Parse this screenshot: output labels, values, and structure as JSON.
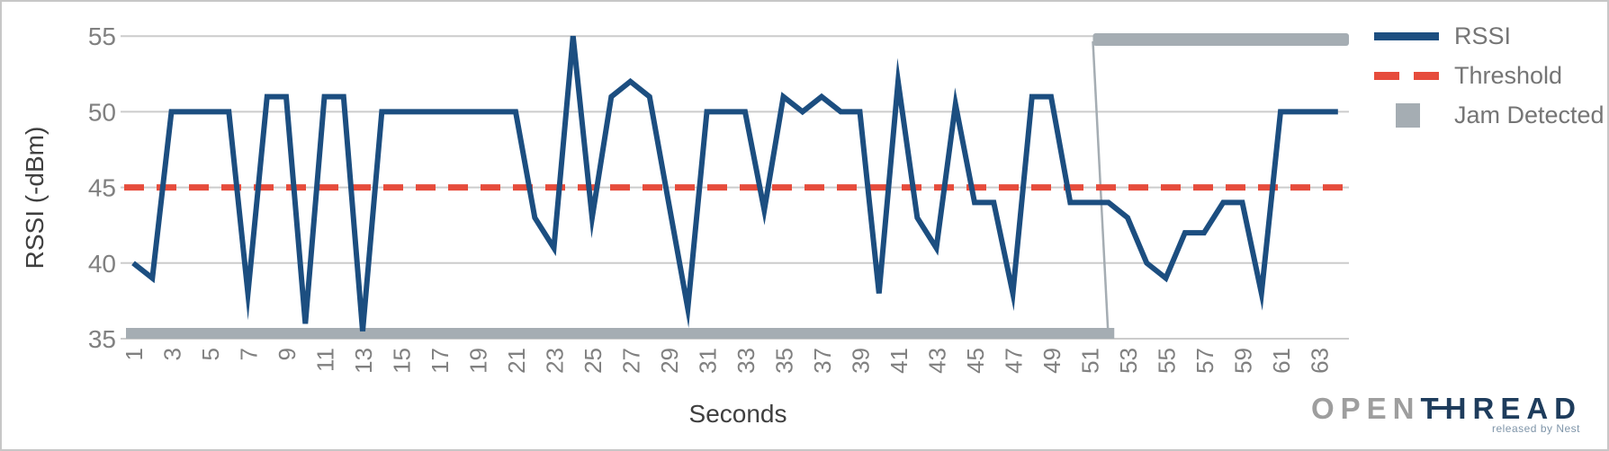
{
  "chart_data": {
    "type": "line",
    "title": "",
    "xlabel": "Seconds",
    "ylabel": "RSSI (-dBm)",
    "x_unit": "seconds",
    "x_first": 1,
    "x_last": 64,
    "ylim": [
      35,
      55
    ],
    "yticks": [
      35,
      40,
      45,
      50,
      55
    ],
    "xticks": [
      1,
      3,
      5,
      7,
      9,
      11,
      13,
      15,
      17,
      19,
      21,
      23,
      25,
      27,
      29,
      31,
      33,
      35,
      37,
      39,
      41,
      43,
      45,
      47,
      49,
      51,
      53,
      55,
      57,
      59,
      61,
      63
    ],
    "grid": true,
    "legend_position": "right",
    "series": [
      {
        "name": "RSSI",
        "type": "line",
        "values": [
          40,
          39,
          50,
          50,
          50,
          50,
          38,
          51,
          51,
          36,
          51,
          51,
          35.5,
          50,
          50,
          50,
          50,
          50,
          50,
          50,
          50,
          43,
          41,
          55,
          43,
          51,
          52,
          51,
          44,
          37,
          50,
          50,
          50,
          43.5,
          51,
          50,
          51,
          50,
          50,
          38,
          52,
          43,
          41,
          50.5,
          44,
          44,
          38,
          51,
          51,
          44,
          44,
          44,
          43,
          40,
          39,
          42,
          42,
          44,
          44,
          38,
          50,
          50,
          50,
          50
        ]
      },
      {
        "name": "Threshold",
        "type": "dashed-line",
        "value": 45
      },
      {
        "name": "Jam Detected",
        "type": "band",
        "segments": [
          {
            "from_second": 1,
            "to_second": 50,
            "position": "bottom",
            "approx_y": 35.3
          },
          {
            "from_second": 51,
            "to_second": 64,
            "position": "top",
            "approx_y": 54.7
          }
        ]
      }
    ]
  },
  "legend": {
    "items": [
      {
        "label": "RSSI",
        "swatch": "line"
      },
      {
        "label": "Threshold",
        "swatch": "dashed"
      },
      {
        "label": "Jam Detected",
        "swatch": "square"
      }
    ]
  },
  "axes": {
    "x_title": "Seconds",
    "y_title": "RSSI (-dBm)"
  },
  "logo": {
    "open": "OPEN",
    "thread": "THREAD",
    "tagline": "released by Nest"
  },
  "colors": {
    "rssi": "#1c4e80",
    "threshold": "#e64c3c",
    "jam": "#a5adb3",
    "grid": "#cccccc",
    "tick_text": "#808080",
    "axis_title_text": "#3f3f3f",
    "legend_text": "#757575",
    "logo_open": "#9e9e9e",
    "logo_thread": "#1e3c5c",
    "tagline": "#7f95a9",
    "border": "#c7c7c7"
  }
}
